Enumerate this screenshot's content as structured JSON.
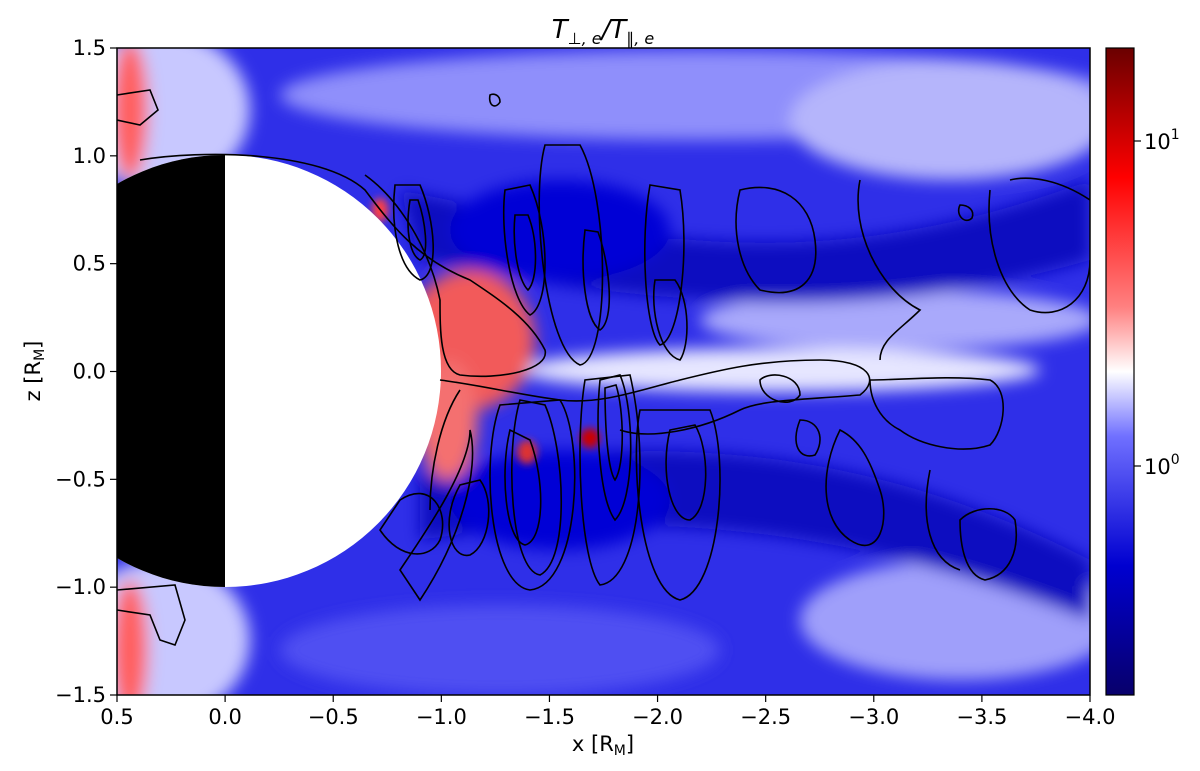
{
  "chart_data": {
    "type": "heatmap",
    "title": "T⊥,e/T∥,e",
    "xlabel": "x [R_M]",
    "ylabel": "z [R_M]",
    "x_range": [
      0.5,
      -4.0
    ],
    "y_range": [
      -1.5,
      1.5
    ],
    "x_ticks": [
      "0.5",
      "0.0",
      "−0.5",
      "−1.0",
      "−1.5",
      "−2.0",
      "−2.5",
      "−3.0",
      "−3.5",
      "−4.0"
    ],
    "x_tick_values": [
      0.5,
      0.0,
      -0.5,
      -1.0,
      -1.5,
      -2.0,
      -2.5,
      -3.0,
      -3.5,
      -4.0
    ],
    "y_ticks": [
      "−1.5",
      "−1.0",
      "−0.5",
      "0.0",
      "0.5",
      "1.0",
      "1.5"
    ],
    "y_tick_values": [
      -1.5,
      -1.0,
      -0.5,
      0.0,
      0.5,
      1.0,
      1.5
    ],
    "colorbar": {
      "scale": "log",
      "range": [
        0.3,
        20
      ],
      "ticks": [
        {
          "value": 1,
          "label": "10^0"
        },
        {
          "value": 10,
          "label": "10^1"
        }
      ],
      "colormap": [
        "#08006b",
        "#0000ff",
        "#ffffff",
        "#ff0000",
        "#6a0000"
      ]
    },
    "planet": {
      "center": [
        0.0,
        0.0
      ],
      "radius": 1.0,
      "night_side_color": "#000000",
      "day_side_color": "#ffffff"
    },
    "grid": false
  }
}
